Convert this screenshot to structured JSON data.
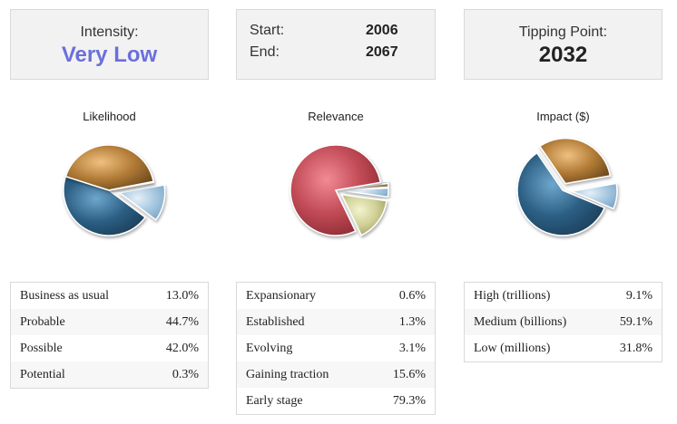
{
  "intensity": {
    "label": "Intensity:",
    "value": "Very Low"
  },
  "range": {
    "start_label": "Start:",
    "start_value": "2006",
    "end_label": "End:",
    "end_value": "2067"
  },
  "tipping": {
    "label": "Tipping Point:",
    "value": "2032"
  },
  "charts": {
    "likelihood": {
      "title": "Likelihood"
    },
    "relevance": {
      "title": "Relevance"
    },
    "impact": {
      "title": "Impact ($)"
    }
  },
  "chart_data": [
    {
      "type": "pie",
      "title": "Likelihood",
      "categories": [
        "Business as usual",
        "Probable",
        "Possible",
        "Potential"
      ],
      "values": [
        13.0,
        44.7,
        42.0,
        0.3
      ]
    },
    {
      "type": "pie",
      "title": "Relevance",
      "categories": [
        "Expansionary",
        "Established",
        "Evolving",
        "Gaining traction",
        "Early stage"
      ],
      "values": [
        0.6,
        1.3,
        3.1,
        15.6,
        79.3
      ]
    },
    {
      "type": "pie",
      "title": "Impact ($)",
      "categories": [
        "High (trillions)",
        "Medium (billions)",
        "Low (millions)"
      ],
      "values": [
        9.1,
        59.1,
        31.8
      ]
    }
  ],
  "tables": {
    "likelihood": [
      {
        "label": "Business as usual",
        "value": "13.0%"
      },
      {
        "label": "Probable",
        "value": "44.7%"
      },
      {
        "label": "Possible",
        "value": "42.0%"
      },
      {
        "label": "Potential",
        "value": "0.3%"
      }
    ],
    "relevance": [
      {
        "label": "Expansionary",
        "value": "0.6%"
      },
      {
        "label": "Established",
        "value": "1.3%"
      },
      {
        "label": "Evolving",
        "value": "3.1%"
      },
      {
        "label": "Gaining traction",
        "value": "15.6%"
      },
      {
        "label": "Early stage",
        "value": "79.3%"
      }
    ],
    "impact": [
      {
        "label": "High (trillions)",
        "value": "9.1%"
      },
      {
        "label": "Medium (billions)",
        "value": "59.1%"
      },
      {
        "label": "Low (millions)",
        "value": "31.8%"
      }
    ]
  }
}
